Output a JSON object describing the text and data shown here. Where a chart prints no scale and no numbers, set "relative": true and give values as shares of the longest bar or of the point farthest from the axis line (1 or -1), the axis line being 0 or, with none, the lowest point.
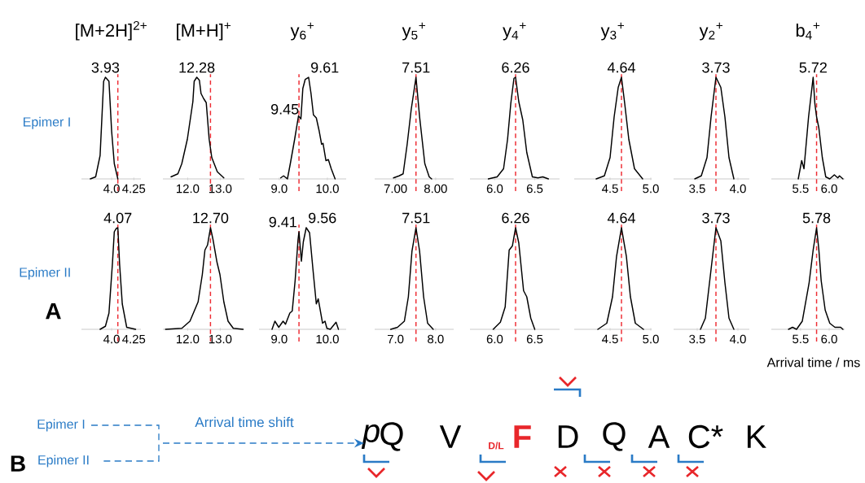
{
  "chart_data": [
    {
      "type": "line",
      "title": "[M+2H]$^{2+}$",
      "relative": true,
      "color": "#000000",
      "xlim": [
        3.66,
        4.33
      ],
      "xticks": [
        {
          "value": 4,
          "label": "4.0"
        },
        {
          "value": 4.25,
          "label": "4.25"
        }
      ],
      "x": [
        3.76,
        3.82,
        3.87,
        3.91,
        3.93,
        3.97,
        4.0,
        4.03,
        4.07
      ],
      "values": [
        0,
        0.02,
        0.23,
        0.96,
        1,
        0.96,
        0.47,
        0.15,
        0
      ],
      "ref_lines": [
        {
          "axis": "x",
          "value": 4.07,
          "color": "#ee2d34",
          "line_style": "dashed"
        }
      ],
      "annotations": [
        {
          "text": "3.93",
          "x": 3.93,
          "y": 1
        },
        "Epimer I"
      ]
    },
    {
      "type": "line",
      "title": "[M+H]$^{+}$",
      "relative": true,
      "color": "#000000",
      "xlim": [
        11.24,
        13.74
      ],
      "xticks": [
        {
          "value": 12,
          "label": "12.0"
        },
        {
          "value": 13,
          "label": "13.0"
        }
      ],
      "x": [
        11.49,
        11.7,
        11.82,
        11.99,
        12.16,
        12.2,
        12.28,
        12.36,
        12.41,
        12.49,
        12.57,
        12.66,
        12.74,
        12.91,
        13.11
      ],
      "values": [
        0.02,
        0.05,
        0.15,
        0.39,
        0.76,
        0.96,
        1,
        0.97,
        0.84,
        0.79,
        0.75,
        0.39,
        0.21,
        0.07,
        0.01
      ],
      "ref_lines": [
        {
          "axis": "x",
          "value": 12.7,
          "color": "#ee2d34",
          "line_style": "dashed"
        }
      ],
      "annotations": [
        {
          "text": "12.28",
          "x": 12.28,
          "y": 1
        }
      ]
    },
    {
      "type": "line",
      "title": "y$_{6}$$^{+}$",
      "relative": true,
      "color": "#000000",
      "xlim": [
        8.58,
        10.39
      ],
      "xticks": [
        {
          "value": 9,
          "label": "9.0"
        },
        {
          "value": 10,
          "label": "10.0"
        }
      ],
      "x": [
        9.03,
        9.09,
        9.17,
        9.23,
        9.32,
        9.4,
        9.45,
        9.49,
        9.54,
        9.61,
        9.66,
        9.71,
        9.77,
        9.83,
        9.88,
        9.91,
        9.97,
        10.02,
        10.08,
        10.16
      ],
      "values": [
        0.01,
        0.03,
        0,
        0.15,
        0.39,
        0.62,
        0.59,
        0.89,
        0.98,
        1,
        0.84,
        0.63,
        0.6,
        0.47,
        0.34,
        0.35,
        0.18,
        0.19,
        0.1,
        0
      ],
      "ref_lines": [
        {
          "axis": "x",
          "value": 9.41,
          "color": "#ee2d34",
          "line_style": "dashed"
        }
      ],
      "annotations": [
        {
          "text": "9.45",
          "x": 9.45,
          "y": 0.59
        },
        {
          "text": "9.61",
          "x": 9.61,
          "y": 1
        }
      ]
    },
    {
      "type": "line",
      "title": "y$_{5}$$^{+}$",
      "relative": true,
      "color": "#000000",
      "xlim": [
        6.48,
        8.45
      ],
      "xticks": [
        {
          "value": 7,
          "label": "7.00"
        },
        {
          "value": 8,
          "label": "8.00"
        }
      ],
      "x": [
        6.95,
        7.09,
        7.19,
        7.29,
        7.39,
        7.51,
        7.6,
        7.73,
        7.84,
        7.9
      ],
      "values": [
        0.01,
        0.03,
        0.05,
        0.34,
        0.68,
        1,
        0.61,
        0.15,
        0.02,
        0
      ],
      "ref_lines": [
        {
          "axis": "x",
          "value": 7.51,
          "color": "#ee2d34",
          "line_style": "dashed"
        }
      ],
      "annotations": [
        {
          "text": "7.51",
          "x": 7.51,
          "y": 1
        }
      ]
    },
    {
      "type": "line",
      "title": "y$_{4}$$^{+}$",
      "relative": true,
      "color": "#000000",
      "xlim": [
        5.69,
        6.81
      ],
      "xticks": [
        {
          "value": 6,
          "label": "6.0"
        },
        {
          "value": 6.5,
          "label": "6.5"
        }
      ],
      "x": [
        5.92,
        6.03,
        6.11,
        6.16,
        6.2,
        6.24,
        6.26,
        6.3,
        6.35,
        6.4,
        6.47,
        6.54,
        6.6,
        6.67
      ],
      "values": [
        0,
        0.02,
        0.1,
        0.39,
        0.74,
        0.99,
        1,
        0.76,
        0.58,
        0.26,
        0.02,
        0.01,
        0.02,
        0
      ],
      "ref_lines": [
        {
          "axis": "x",
          "value": 6.26,
          "color": "#ee2d34",
          "line_style": "dashed"
        }
      ],
      "annotations": [
        {
          "text": "6.26",
          "x": 6.26,
          "y": 1
        }
      ]
    },
    {
      "type": "line",
      "title": "y$_{3}$$^{+}$",
      "relative": true,
      "color": "#000000",
      "xlim": [
        4.06,
        5.01
      ],
      "xticks": [
        {
          "value": 4.5,
          "label": "4.5"
        },
        {
          "value": 5,
          "label": "5.0"
        }
      ],
      "x": [
        4.33,
        4.43,
        4.5,
        4.55,
        4.6,
        4.64,
        4.68,
        4.73,
        4.8,
        4.9
      ],
      "values": [
        0,
        0.03,
        0.21,
        0.61,
        0.9,
        1,
        0.74,
        0.39,
        0.1,
        0
      ],
      "ref_lines": [
        {
          "axis": "x",
          "value": 4.64,
          "color": "#ee2d34",
          "line_style": "dashed"
        }
      ],
      "annotations": [
        {
          "text": "4.64",
          "x": 4.64,
          "y": 1
        }
      ]
    },
    {
      "type": "line",
      "title": "y$_{2}$$^{+}$",
      "relative": true,
      "color": "#000000",
      "xlim": [
        3.21,
        4.14
      ],
      "xticks": [
        {
          "value": 3.5,
          "label": "3.5"
        },
        {
          "value": 4,
          "label": "4.0"
        }
      ],
      "x": [
        3.47,
        3.55,
        3.62,
        3.67,
        3.73,
        3.79,
        3.84,
        3.89,
        3.95
      ],
      "values": [
        0,
        0.03,
        0.21,
        0.61,
        1,
        0.9,
        0.61,
        0.21,
        0
      ],
      "ref_lines": [
        {
          "axis": "x",
          "value": 3.73,
          "color": "#ee2d34",
          "line_style": "dashed"
        }
      ],
      "annotations": [
        {
          "text": "3.73",
          "x": 3.73,
          "y": 1
        }
      ]
    },
    {
      "type": "line",
      "title": "b$_{4}$$^{+}$",
      "relative": true,
      "color": "#000000",
      "xlim": [
        4.99,
        6.27
      ],
      "xticks": [
        {
          "value": 5.5,
          "label": "5.5"
        },
        {
          "value": 6,
          "label": "6.0"
        }
      ],
      "x": [
        5.46,
        5.52,
        5.56,
        5.64,
        5.72,
        5.75,
        5.78,
        5.82,
        5.88,
        5.94,
        6.01,
        6.09,
        6.15,
        6.18,
        6.24
      ],
      "values": [
        0,
        0.18,
        0.1,
        0.61,
        1,
        0.74,
        0.61,
        0.5,
        0.21,
        0.02,
        0,
        0.04,
        0.01,
        0.03,
        0
      ],
      "ref_lines": [
        {
          "axis": "x",
          "value": 5.78,
          "color": "#ee2d34",
          "line_style": "dashed"
        }
      ],
      "annotations": [
        {
          "text": "5.72",
          "x": 5.72,
          "y": 1
        }
      ]
    },
    {
      "type": "line",
      "relative": true,
      "color": "#000000",
      "xlim": [
        3.66,
        4.33
      ],
      "xticks": [
        {
          "value": 4,
          "label": "4.0"
        },
        {
          "value": 4.25,
          "label": "4.25"
        }
      ],
      "x": [
        3.87,
        3.93,
        3.97,
        4.01,
        4.03,
        4.05,
        4.07,
        4.09,
        4.12,
        4.17,
        4.27
      ],
      "values": [
        0,
        0.03,
        0.16,
        0.66,
        0.96,
        0.99,
        1,
        0.64,
        0.25,
        0.02,
        0
      ],
      "ref_lines": [
        {
          "axis": "x",
          "value": 4.07,
          "color": "#ee2d34",
          "line_style": "dashed"
        }
      ],
      "annotations": [
        {
          "text": "4.07",
          "x": 4.07,
          "y": 1
        },
        "Epimer II",
        "A"
      ]
    },
    {
      "type": "line",
      "relative": true,
      "color": "#000000",
      "xlim": [
        11.24,
        13.74
      ],
      "xticks": [
        {
          "value": 12,
          "label": "12.0"
        },
        {
          "value": 13,
          "label": "13.0"
        }
      ],
      "x": [
        11.32,
        11.82,
        12.07,
        12.32,
        12.45,
        12.53,
        12.61,
        12.7,
        12.78,
        12.9,
        12.99,
        13.11,
        13.24,
        13.4,
        13.7
      ],
      "values": [
        0,
        0.01,
        0.08,
        0.27,
        0.54,
        0.78,
        0.83,
        1,
        0.88,
        0.66,
        0.54,
        0.27,
        0.08,
        0.01,
        0
      ],
      "ref_lines": [
        {
          "axis": "x",
          "value": 12.7,
          "color": "#ee2d34",
          "line_style": "dashed"
        }
      ],
      "annotations": [
        {
          "text": "12.70",
          "x": 12.7,
          "y": 1
        }
      ]
    },
    {
      "type": "line",
      "relative": true,
      "color": "#000000",
      "xlim": [
        8.58,
        10.39
      ],
      "xticks": [
        {
          "value": 9,
          "label": "9.0"
        },
        {
          "value": 10,
          "label": "10.0"
        }
      ],
      "x": [
        8.85,
        8.91,
        8.99,
        9.08,
        9.13,
        9.22,
        9.27,
        9.33,
        9.39,
        9.41,
        9.46,
        9.5,
        9.56,
        9.63,
        9.7,
        9.77,
        9.81,
        9.9,
        9.95,
        9.99,
        10.06,
        10.18,
        10.23
      ],
      "values": [
        0,
        0.08,
        0.02,
        0.08,
        0.05,
        0.16,
        0.18,
        0.48,
        0.88,
        0.96,
        0.67,
        0.86,
        1,
        0.95,
        0.59,
        0.25,
        0.3,
        0.06,
        0.08,
        0.01,
        0,
        0.07,
        0
      ],
      "ref_lines": [
        {
          "axis": "x",
          "value": 9.41,
          "color": "#ee2d34",
          "line_style": "dashed"
        }
      ],
      "annotations": [
        {
          "text": "9.41",
          "x": 9.41,
          "y": 0.96
        },
        {
          "text": "9.56",
          "x": 9.56,
          "y": 1
        }
      ]
    },
    {
      "type": "line",
      "relative": true,
      "color": "#000000",
      "xlim": [
        6.48,
        8.45
      ],
      "xticks": [
        {
          "value": 7,
          "label": "7.0"
        },
        {
          "value": 8,
          "label": "8.0"
        }
      ],
      "x": [
        6.88,
        7.05,
        7.22,
        7.32,
        7.41,
        7.51,
        7.6,
        7.7,
        7.8,
        7.94
      ],
      "values": [
        0,
        0.02,
        0.08,
        0.32,
        0.77,
        1,
        0.77,
        0.32,
        0.06,
        0
      ],
      "ref_lines": [
        {
          "axis": "x",
          "value": 7.51,
          "color": "#ee2d34",
          "line_style": "dashed"
        }
      ],
      "annotations": [
        {
          "text": "7.51",
          "x": 7.51,
          "y": 1
        }
      ]
    },
    {
      "type": "line",
      "relative": true,
      "color": "#000000",
      "xlim": [
        5.69,
        6.81
      ],
      "xticks": [
        {
          "value": 6,
          "label": "6.0"
        },
        {
          "value": 6.5,
          "label": "6.5"
        }
      ],
      "x": [
        5.98,
        6.07,
        6.13,
        6.18,
        6.22,
        6.26,
        6.3,
        6.36,
        6.4,
        6.45,
        6.5
      ],
      "values": [
        0,
        0.07,
        0.22,
        0.78,
        0.82,
        1,
        0.85,
        0.38,
        0.32,
        0.11,
        0
      ],
      "ref_lines": [
        {
          "axis": "x",
          "value": 6.26,
          "color": "#ee2d34",
          "line_style": "dashed"
        }
      ],
      "annotations": [
        {
          "text": "6.26",
          "x": 6.26,
          "y": 1
        }
      ]
    },
    {
      "type": "line",
      "relative": true,
      "color": "#000000",
      "xlim": [
        4.06,
        5.01
      ],
      "xticks": [
        {
          "value": 4.5,
          "label": "4.5"
        },
        {
          "value": 5,
          "label": "5.0"
        }
      ],
      "x": [
        4.35,
        4.46,
        4.53,
        4.58,
        4.64,
        4.7,
        4.75,
        4.81,
        4.91
      ],
      "values": [
        0,
        0.06,
        0.32,
        0.72,
        1,
        0.72,
        0.32,
        0.06,
        0
      ],
      "ref_lines": [
        {
          "axis": "x",
          "value": 4.64,
          "color": "#ee2d34",
          "line_style": "dashed"
        }
      ],
      "annotations": [
        {
          "text": "4.64",
          "x": 4.64,
          "y": 1
        }
      ]
    },
    {
      "type": "line",
      "relative": true,
      "color": "#000000",
      "xlim": [
        3.21,
        4.14
      ],
      "xticks": [
        {
          "value": 3.5,
          "label": "3.5"
        },
        {
          "value": 4,
          "label": "4.0"
        }
      ],
      "x": [
        3.54,
        3.6,
        3.67,
        3.73,
        3.79,
        3.84,
        3.89,
        3.95
      ],
      "values": [
        0,
        0.11,
        0.59,
        1,
        0.87,
        0.46,
        0.11,
        0
      ],
      "ref_lines": [
        {
          "axis": "x",
          "value": 3.73,
          "color": "#ee2d34",
          "line_style": "dashed"
        }
      ],
      "annotations": [
        {
          "text": "3.73",
          "x": 3.73,
          "y": 1
        }
      ]
    },
    {
      "type": "line",
      "relative": true,
      "color": "#000000",
      "xlim": [
        4.99,
        6.27
      ],
      "xticks": [
        {
          "value": 5.5,
          "label": "5.5"
        },
        {
          "value": 6,
          "label": "6.0"
        }
      ],
      "x": [
        5.29,
        5.36,
        5.43,
        5.53,
        5.65,
        5.72,
        5.78,
        5.82,
        5.86,
        5.93,
        6.01,
        6.1,
        6.2,
        6.24
      ],
      "values": [
        0,
        0.02,
        0,
        0.08,
        0.46,
        0.78,
        1,
        0.78,
        0.48,
        0.19,
        0.06,
        0.02,
        0.02,
        0
      ],
      "ref_lines": [
        {
          "axis": "x",
          "value": 5.78,
          "color": "#ee2d34",
          "line_style": "dashed"
        }
      ],
      "annotations": [
        {
          "text": "5.78",
          "x": 5.78,
          "y": 1
        }
      ],
      "xlabel": "Arrival time / ms"
    },
    {
      "type": "other",
      "annotations": [
        "B",
        "Epimer I",
        "Epimer II",
        "Arrival time shift",
        "p",
        "Q",
        "V",
        "D/L",
        "F",
        "D",
        "Q",
        "A",
        "C*",
        "K"
      ]
    }
  ]
}
